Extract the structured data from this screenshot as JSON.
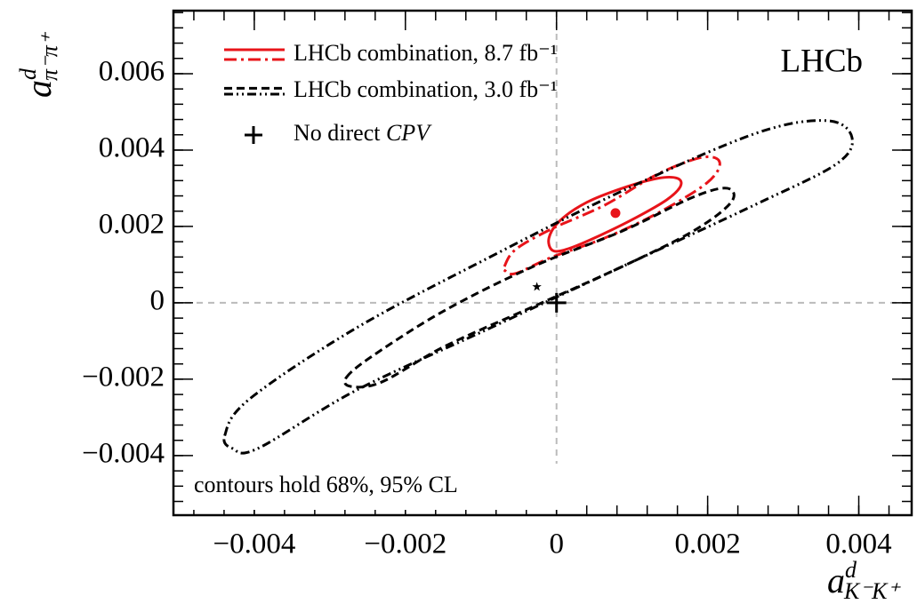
{
  "chart_data": {
    "type": "contour",
    "x_label": {
      "text": "a",
      "superscript": "d",
      "subscript": "K⁻K⁺"
    },
    "y_label": {
      "text": "a",
      "superscript": "d",
      "subscript": "π⁻π⁺"
    },
    "xlim": [
      -0.00507,
      0.0047
    ],
    "ylim": [
      -0.00556,
      0.00765
    ],
    "xticks": [
      {
        "value": -0.004,
        "label": "−0.004"
      },
      {
        "value": -0.002,
        "label": "−0.002"
      },
      0,
      0.002,
      0.004
    ],
    "yticks": [
      {
        "value": -0.004,
        "label": "−0.004"
      },
      {
        "value": -0.002,
        "label": "−0.002"
      },
      0,
      0.002,
      0.004,
      0.006
    ],
    "minor_tick_step": 0.0004,
    "zero_lines": true,
    "series": [
      {
        "name": "LHCb combination, 8.7 fb⁻¹",
        "color": "#e8141a",
        "best_fit": {
          "x": 0.00078,
          "y": 0.00235,
          "marker": "circle"
        },
        "contours": [
          {
            "linestyle": "solid",
            "x": [
              -0.0001,
              5e-05,
              0.0004,
              0.00087,
              0.00134,
              0.0016,
              0.00164,
              0.00146,
              0.00105,
              0.00058,
              0.00016,
              -5e-05
            ],
            "y": [
              0.0017,
              0.00216,
              0.00263,
              0.003,
              0.00326,
              0.00326,
              0.00305,
              0.0027,
              0.00223,
              0.00177,
              0.00142,
              0.00137
            ]
          },
          {
            "linestyle": "dashdot",
            "x": [
              -0.00069,
              -0.00054,
              -7e-05,
              0.00064,
              0.00134,
              0.00193,
              0.00216,
              0.00199,
              0.00134,
              0.00064,
              -7e-05,
              -0.00054,
              -0.00068
            ],
            "y": [
              0.00095,
              0.0014,
              0.00193,
              0.00256,
              0.00337,
              0.00381,
              0.00367,
              0.00314,
              0.00235,
              0.0017,
              0.00119,
              0.00077,
              0.00084
            ]
          }
        ]
      },
      {
        "name": "LHCb combination, 3.0 fb⁻¹",
        "color": "#000000",
        "best_fit": {
          "x": -0.00026,
          "y": 0.00042,
          "marker": "star"
        },
        "contours": [
          {
            "linestyle": "dashed",
            "x": [
              -0.00278,
              -0.00242,
              -0.00148,
              -0.00031,
              0.00087,
              0.00181,
              0.00226,
              0.00231,
              0.00181,
              0.00087,
              -0.00031,
              -0.00148,
              -0.00231,
              -0.00272
            ],
            "y": [
              -0.00195,
              -0.00137,
              -0.0002,
              0.00095,
              0.00188,
              0.00277,
              0.003,
              0.00263,
              0.00188,
              0.00095,
              -0.0001,
              -0.00114,
              -0.00207,
              -0.00219
            ]
          },
          {
            "linestyle": "dashdotdot",
            "x": [
              -0.00439,
              -0.00407,
              -0.00266,
              -0.00089,
              0.00087,
              0.00264,
              0.00358,
              0.00391,
              0.0037,
              0.00264,
              0.00087,
              -0.00089,
              -0.00266,
              -0.00395,
              -0.00429
            ],
            "y": [
              -0.00347,
              -0.00253,
              -0.00067,
              0.00119,
              0.00293,
              0.00444,
              0.00477,
              0.00433,
              0.00363,
              0.00258,
              0.00095,
              -0.00067,
              -0.0023,
              -0.00381,
              -0.00381
            ]
          }
        ]
      }
    ],
    "reference_point": {
      "name": "No direct",
      "name_italic": "CPV",
      "x": 0,
      "y": 0,
      "marker": "cross",
      "color": "#000000"
    },
    "annotations": [
      "LHCb",
      "contours hold 68%, 95% CL"
    ]
  }
}
